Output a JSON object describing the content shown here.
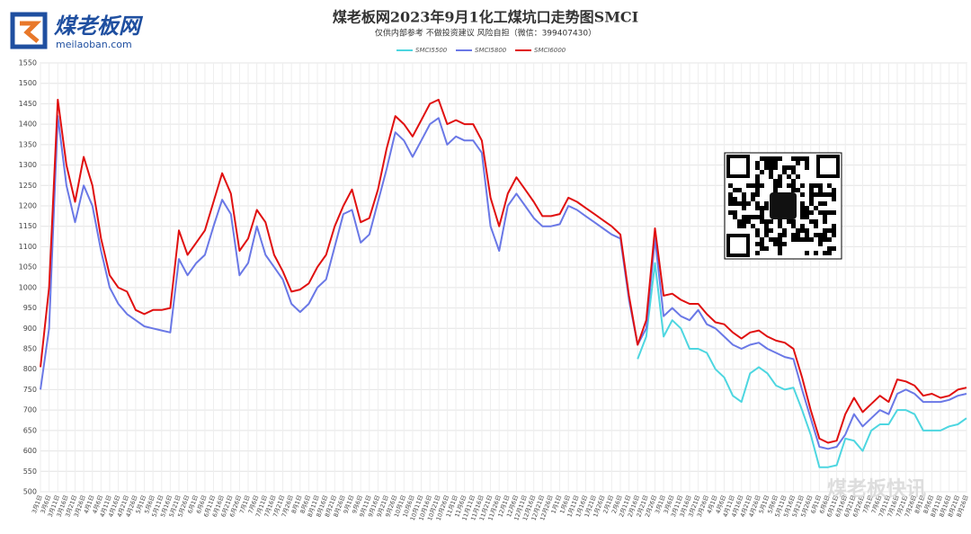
{
  "chart_data": {
    "type": "line",
    "title": "煤老板网2023年9月1化工煤坑口走势图SMCI",
    "subtitle": "仅供内部参考 不做投资建议 风险自担（微信：399407430）",
    "logo_text": "煤老板网",
    "logo_url": "meilaoban.com",
    "watermark": "煤老板快讯",
    "categories": [
      "3月1日",
      "3月6日",
      "3月11日",
      "3月16日",
      "3月21日",
      "3月26日",
      "4月1日",
      "4月6日",
      "4月11日",
      "4月16日",
      "4月21日",
      "4月26日",
      "5月1日",
      "5月6日",
      "5月11日",
      "5月16日",
      "5月21日",
      "5月26日",
      "6月1日",
      "6月6日",
      "6月11日",
      "6月16日",
      "6月21日",
      "6月26日",
      "7月1日",
      "7月6日",
      "7月11日",
      "7月16日",
      "7月21日",
      "7月26日",
      "8月1日",
      "8月6日",
      "8月11日",
      "8月16日",
      "8月21日",
      "8月26日",
      "9月1日",
      "9月6日",
      "9月11日",
      "9月16日",
      "9月21日",
      "9月26日",
      "10月1日",
      "10月6日",
      "10月11日",
      "10月16日",
      "10月21日",
      "10月26日",
      "11月1日",
      "11月6日",
      "11月11日",
      "11月16日",
      "11月21日",
      "11月26日",
      "12月1日",
      "12月6日",
      "12月11日",
      "12月16日",
      "12月21日",
      "12月26日",
      "1月1日",
      "1月6日",
      "1月11日",
      "1月16日",
      "1月21日",
      "1月26日",
      "2月1日",
      "2月6日",
      "2月11日",
      "2月16日",
      "2月21日",
      "2月26日",
      "3月1日",
      "3月6日",
      "3月11日",
      "3月16日",
      "3月21日",
      "3月26日",
      "4月1日",
      "4月6日",
      "4月11日",
      "4月16日",
      "4月21日",
      "4月26日",
      "5月1日",
      "5月6日",
      "5月11日",
      "5月16日",
      "5月21日",
      "5月26日",
      "6月1日",
      "6月6日",
      "6月11日",
      "6月16日",
      "6月21日",
      "6月26日",
      "7月1日",
      "7月6日",
      "7月11日",
      "7月16日",
      "7月21日",
      "7月26日",
      "8月1日",
      "8月6日",
      "8月11日",
      "8月16日",
      "8月21日",
      "8月26日"
    ],
    "series": [
      {
        "name": "SMCI5500",
        "color": "#4dd6e0",
        "values": [
          null,
          null,
          null,
          null,
          null,
          null,
          null,
          null,
          null,
          null,
          null,
          null,
          null,
          null,
          null,
          null,
          null,
          null,
          null,
          null,
          null,
          null,
          null,
          null,
          null,
          null,
          null,
          null,
          null,
          null,
          null,
          null,
          null,
          null,
          null,
          null,
          null,
          null,
          null,
          null,
          null,
          null,
          null,
          null,
          null,
          null,
          null,
          null,
          null,
          null,
          null,
          null,
          null,
          null,
          null,
          null,
          null,
          null,
          null,
          null,
          null,
          null,
          null,
          null,
          null,
          null,
          null,
          null,
          null,
          825,
          880,
          1060,
          880,
          920,
          900,
          850,
          850,
          840,
          800,
          780,
          735,
          720,
          790,
          805,
          790,
          760,
          750,
          755,
          700,
          640,
          560,
          560,
          565,
          630,
          625,
          600,
          650,
          665,
          665,
          700,
          700,
          690,
          650,
          650,
          650,
          660,
          665,
          680
        ]
      },
      {
        "name": "SMCI5800",
        "color": "#6a78e6",
        "values": [
          750,
          900,
          1420,
          1250,
          1160,
          1250,
          1200,
          1090,
          1000,
          960,
          935,
          920,
          905,
          900,
          895,
          890,
          1070,
          1030,
          1060,
          1080,
          1150,
          1215,
          1180,
          1030,
          1060,
          1150,
          1080,
          1050,
          1020,
          960,
          940,
          960,
          1000,
          1020,
          1100,
          1180,
          1190,
          1110,
          1130,
          1210,
          1290,
          1380,
          1360,
          1320,
          1360,
          1400,
          1415,
          1350,
          1370,
          1360,
          1360,
          1330,
          1150,
          1090,
          1200,
          1230,
          1200,
          1170,
          1150,
          1150,
          1155,
          1200,
          1190,
          1175,
          1160,
          1145,
          1130,
          1120,
          970,
          860,
          900,
          1120,
          930,
          950,
          930,
          920,
          945,
          910,
          900,
          880,
          860,
          850,
          860,
          865,
          850,
          840,
          830,
          825,
          750,
          680,
          610,
          605,
          610,
          640,
          690,
          660,
          680,
          700,
          690,
          740,
          750,
          740,
          720,
          720,
          720,
          725,
          735,
          740
        ]
      },
      {
        "name": "SMCI6000",
        "color": "#e01010",
        "values": [
          805,
          1000,
          1460,
          1300,
          1210,
          1320,
          1250,
          1120,
          1030,
          1000,
          990,
          945,
          935,
          945,
          945,
          950,
          1140,
          1080,
          1110,
          1140,
          1210,
          1280,
          1230,
          1090,
          1120,
          1190,
          1160,
          1080,
          1040,
          990,
          995,
          1010,
          1050,
          1080,
          1150,
          1200,
          1240,
          1160,
          1170,
          1240,
          1340,
          1420,
          1400,
          1370,
          1410,
          1450,
          1460,
          1400,
          1410,
          1400,
          1400,
          1360,
          1220,
          1150,
          1230,
          1270,
          1240,
          1210,
          1175,
          1175,
          1180,
          1220,
          1210,
          1195,
          1180,
          1165,
          1150,
          1130,
          980,
          860,
          920,
          1145,
          980,
          985,
          970,
          960,
          960,
          935,
          915,
          910,
          890,
          875,
          890,
          895,
          880,
          870,
          865,
          850,
          780,
          700,
          630,
          620,
          625,
          690,
          730,
          695,
          715,
          735,
          720,
          775,
          770,
          760,
          735,
          740,
          730,
          735,
          750,
          755
        ]
      }
    ],
    "ylim": [
      500,
      1550
    ],
    "yticks": [
      500,
      550,
      600,
      650,
      700,
      750,
      800,
      850,
      900,
      950,
      1000,
      1050,
      1100,
      1150,
      1200,
      1250,
      1300,
      1350,
      1400,
      1450,
      1500,
      1550
    ],
    "grid": true,
    "legend": "top"
  }
}
